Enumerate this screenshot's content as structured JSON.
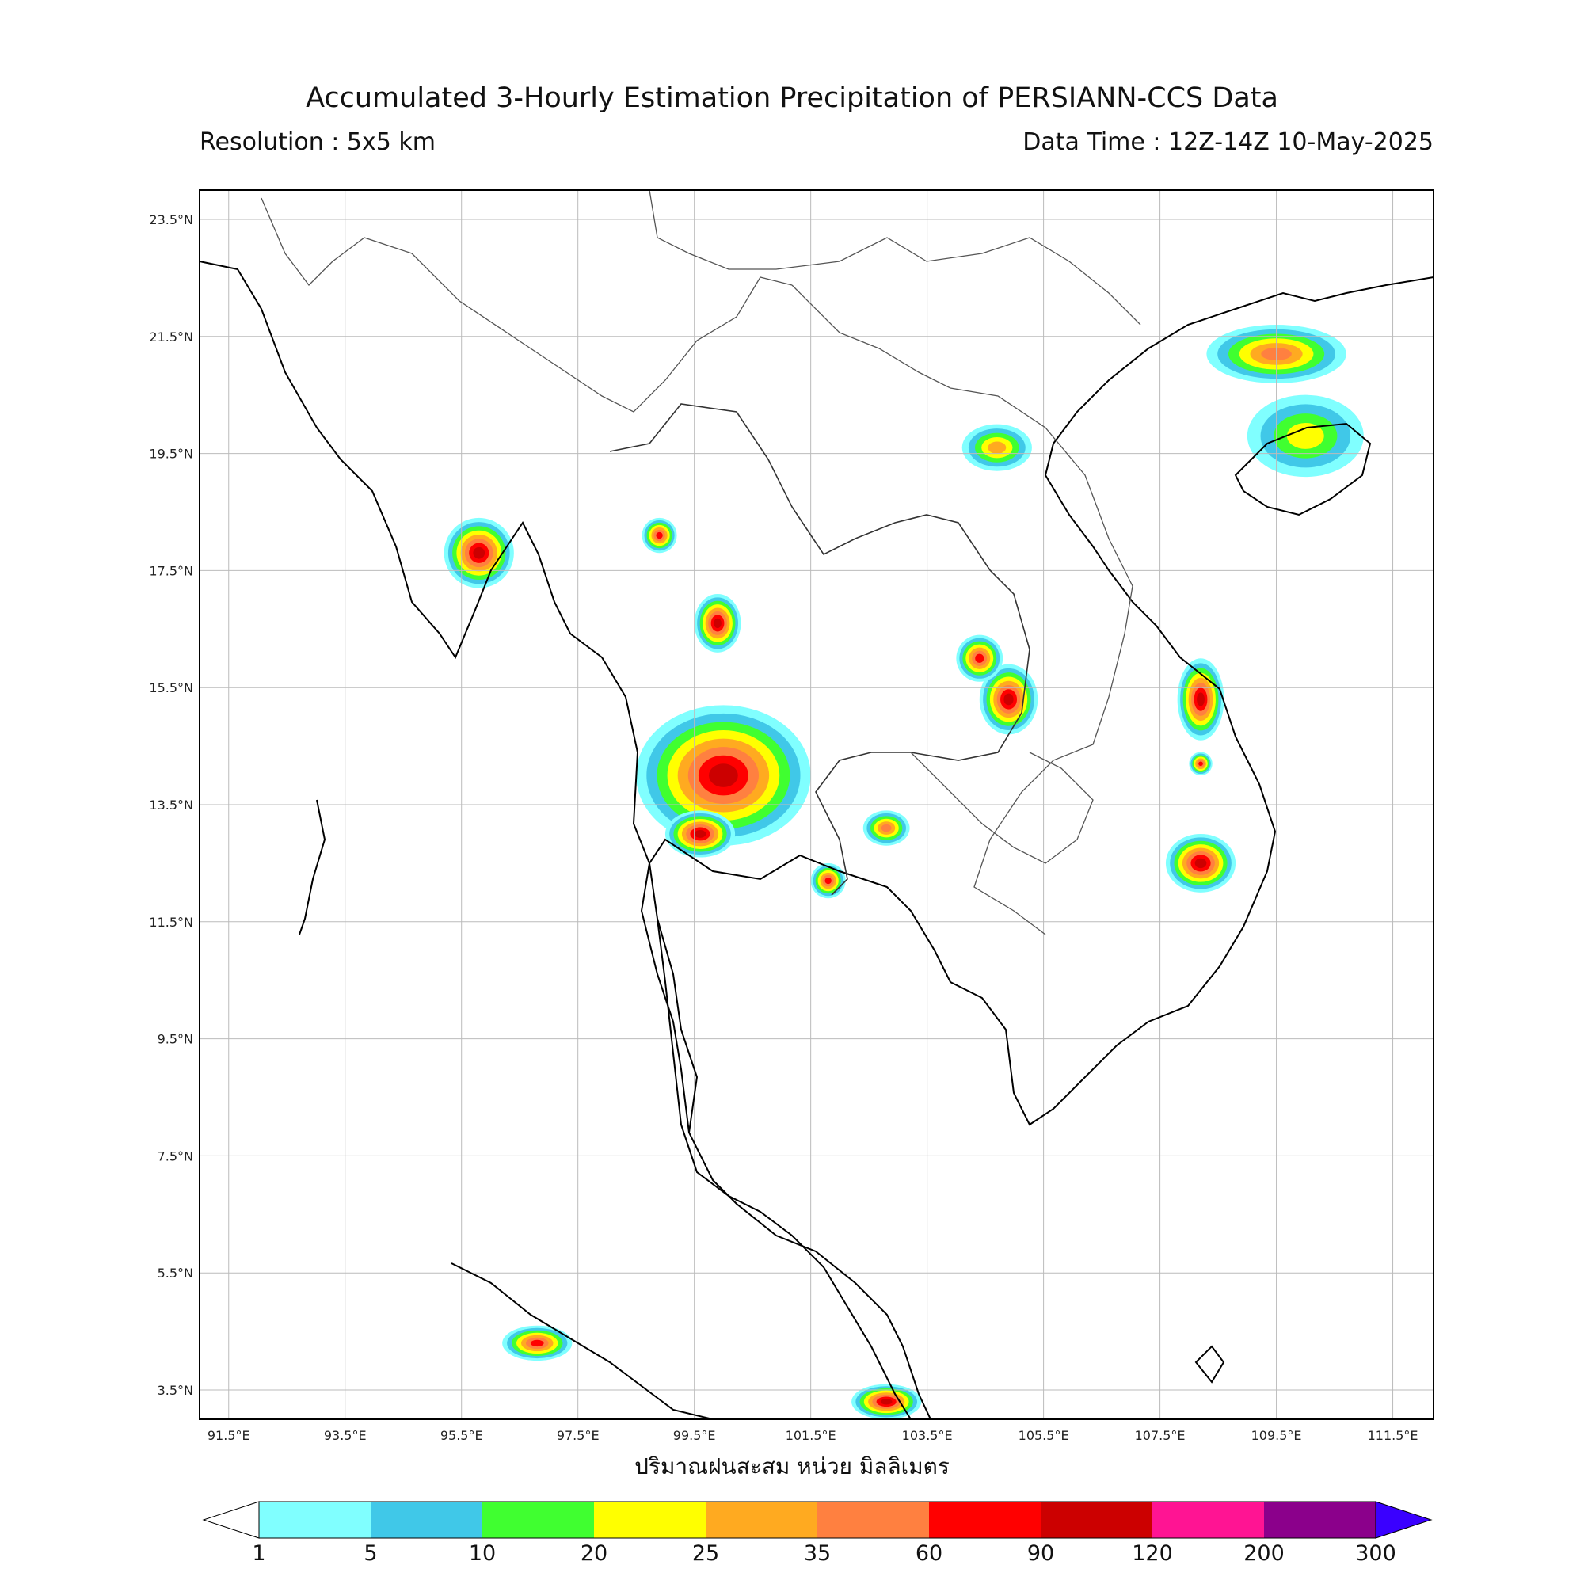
{
  "header": {
    "title": "Accumulated 3-Hourly Estimation Precipitation of PERSIANN-CCS Data",
    "resolution": "Resolution : 5x5 km",
    "data_time": "Data Time : 12Z-14Z 10-May-2025"
  },
  "axes": {
    "lat_labels": [
      "23.5°N",
      "21.5°N",
      "19.5°N",
      "17.5°N",
      "15.5°N",
      "13.5°N",
      "11.5°N",
      "9.5°N",
      "7.5°N",
      "5.5°N",
      "3.5°N"
    ],
    "lon_labels": [
      "91.5°E",
      "93.5°E",
      "95.5°E",
      "97.5°E",
      "99.5°E",
      "101.5°E",
      "103.5°E",
      "105.5°E",
      "107.5°E",
      "109.5°E",
      "111.5°E"
    ],
    "lat_range": [
      3.0,
      24.0
    ],
    "lon_range": [
      91.0,
      112.2
    ],
    "grid": true
  },
  "colorbar": {
    "units_label": "ปริมาณฝนสะสม หน่วย มิลลิเมตร",
    "levels": [
      "1",
      "5",
      "10",
      "20",
      "25",
      "35",
      "60",
      "90",
      "120",
      "200",
      "300"
    ],
    "colors": [
      "#80ffff",
      "#40c8e8",
      "#40ff30",
      "#ffff00",
      "#ffaa20",
      "#ff8040",
      "#ff0000",
      "#cc0000",
      "#ff1493",
      "#8b008b"
    ],
    "under_color": "#ffffff",
    "over_color": "#3a00ff"
  },
  "rain_cells": [
    {
      "lon": 100.0,
      "lat": 14.0,
      "rx": 1.5,
      "ry": 1.2,
      "max_mm": 90
    },
    {
      "lon": 99.6,
      "lat": 13.0,
      "rx": 0.6,
      "ry": 0.4,
      "max_mm": 90
    },
    {
      "lon": 104.9,
      "lat": 15.3,
      "rx": 0.5,
      "ry": 0.6,
      "max_mm": 90
    },
    {
      "lon": 104.4,
      "lat": 16.0,
      "rx": 0.4,
      "ry": 0.4,
      "max_mm": 60
    },
    {
      "lon": 108.2,
      "lat": 15.3,
      "rx": 0.4,
      "ry": 0.7,
      "max_mm": 90
    },
    {
      "lon": 108.2,
      "lat": 12.5,
      "rx": 0.6,
      "ry": 0.5,
      "max_mm": 90
    },
    {
      "lon": 108.2,
      "lat": 14.2,
      "rx": 0.2,
      "ry": 0.2,
      "max_mm": 60
    },
    {
      "lon": 95.8,
      "lat": 17.8,
      "rx": 0.6,
      "ry": 0.6,
      "max_mm": 90
    },
    {
      "lon": 99.9,
      "lat": 16.6,
      "rx": 0.4,
      "ry": 0.5,
      "max_mm": 90
    },
    {
      "lon": 98.9,
      "lat": 18.1,
      "rx": 0.3,
      "ry": 0.3,
      "max_mm": 60
    },
    {
      "lon": 102.8,
      "lat": 13.1,
      "rx": 0.4,
      "ry": 0.3,
      "max_mm": 35
    },
    {
      "lon": 101.8,
      "lat": 12.2,
      "rx": 0.3,
      "ry": 0.3,
      "max_mm": 60
    },
    {
      "lon": 102.8,
      "lat": 3.3,
      "rx": 0.6,
      "ry": 0.3,
      "max_mm": 90
    },
    {
      "lon": 96.8,
      "lat": 4.3,
      "rx": 0.6,
      "ry": 0.3,
      "max_mm": 60
    },
    {
      "lon": 104.7,
      "lat": 19.6,
      "rx": 0.6,
      "ry": 0.4,
      "max_mm": 25
    },
    {
      "lon": 110.0,
      "lat": 19.8,
      "rx": 1.0,
      "ry": 0.7,
      "max_mm": 20
    },
    {
      "lon": 109.5,
      "lat": 21.2,
      "rx": 1.2,
      "ry": 0.5,
      "max_mm": 35
    }
  ]
}
